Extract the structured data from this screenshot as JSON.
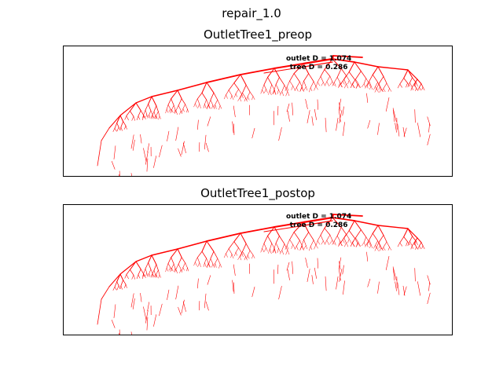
{
  "figure": {
    "title": "repair_1.0"
  },
  "panels": [
    {
      "title": "OutletTree1_preop",
      "annotation": {
        "outlet_label": "outlet D = 1.074",
        "tree_label": "tree D = 0.286"
      }
    },
    {
      "title": "OutletTree1_postop",
      "annotation": {
        "outlet_label": "outlet D = 1.074",
        "tree_label": "tree D = 0.286"
      }
    }
  ],
  "colors": {
    "tree": "#ff0000",
    "frame": "#000000",
    "background": "#ffffff"
  }
}
